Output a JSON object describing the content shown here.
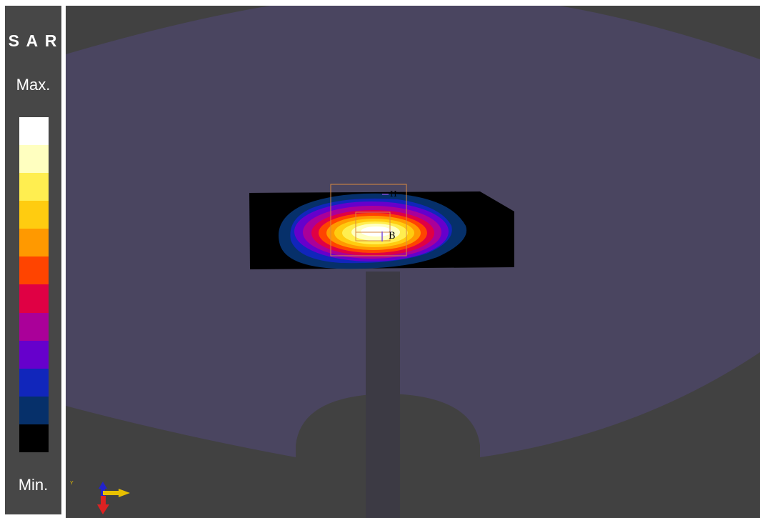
{
  "legend": {
    "title": "S A R",
    "max_label": "Max.",
    "min_label": "Min.",
    "bands": [
      "#ffffff",
      "#ffffc0",
      "#ffee50",
      "#ffcc10",
      "#ff9900",
      "#ff4400",
      "#e00044",
      "#aa0099",
      "#6600cc",
      "#1126bb",
      "#06306a",
      "#000000"
    ]
  },
  "scene": {
    "markers": {
      "h_label": "H",
      "b_label": "B"
    },
    "axis_triad": {
      "y_label": "Y"
    }
  },
  "colors": {
    "panel": "#474747",
    "background": "#414141",
    "phantom": "#4a4560",
    "highlight_box": "#d98a40"
  }
}
